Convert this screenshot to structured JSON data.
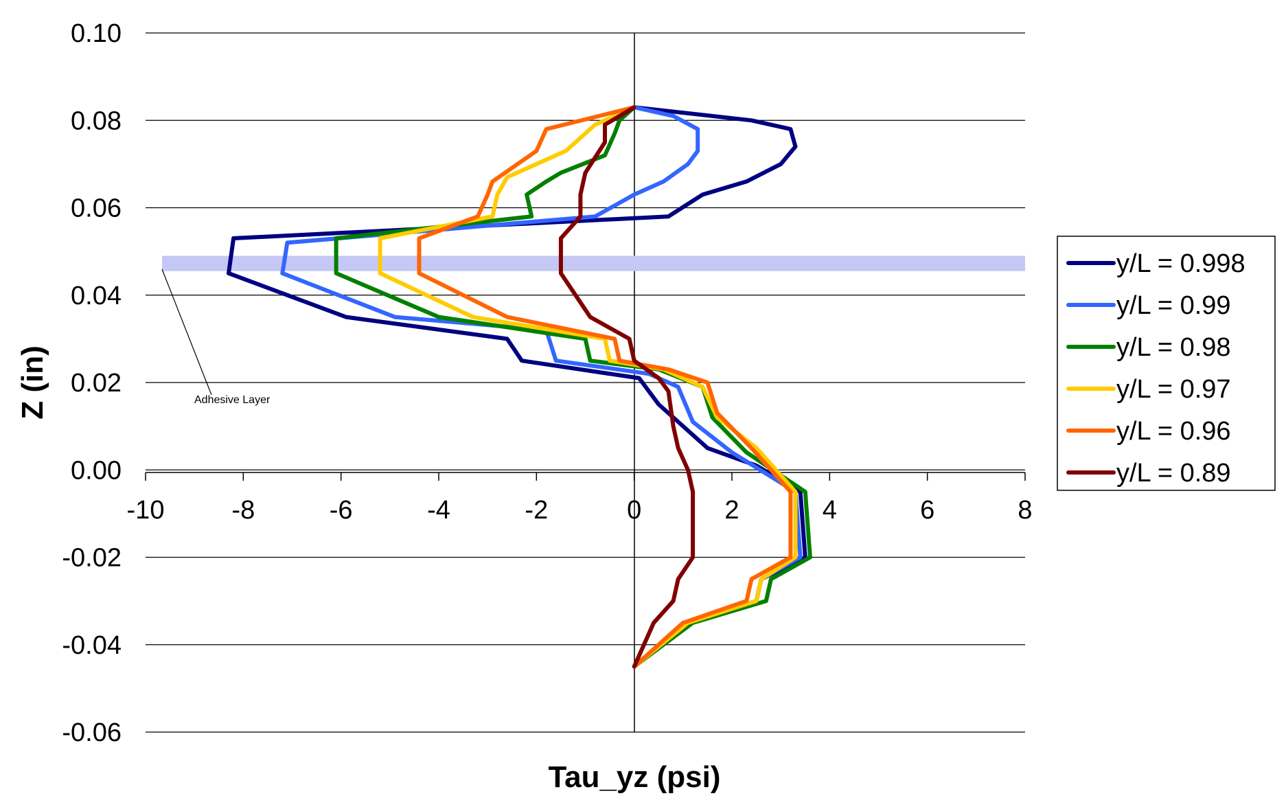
{
  "chart_data": {
    "type": "line",
    "title": "",
    "xlabel": "Tau_yz (psi)",
    "ylabel": "Z (in)",
    "xlim": [
      -10,
      8
    ],
    "ylim": [
      -0.06,
      0.1
    ],
    "x_ticks": [
      -10,
      -8,
      -6,
      -4,
      -2,
      0,
      2,
      4,
      6,
      8
    ],
    "x_tick_labels": [
      "-10",
      "-8",
      "-6",
      "-4",
      "-2",
      "0",
      "2",
      "4",
      "6",
      "8"
    ],
    "y_ticks": [
      0.1,
      0.08,
      0.06,
      0.04,
      0.02,
      0.0,
      -0.02,
      -0.04,
      -0.06
    ],
    "y_tick_labels": [
      "0.10",
      "0.08",
      "0.06",
      "0.04",
      "0.02",
      "0.00",
      "-0.02",
      "-0.04",
      "-0.06"
    ],
    "grid": "horizontal",
    "legend_position": "right",
    "annotation": {
      "text": "Adhesive Layer",
      "band_z_range": [
        0.0455,
        0.049
      ],
      "band_color": "#c5c8f5"
    },
    "series": [
      {
        "name": "y/L = 0.998",
        "color": "#000080",
        "points": [
          [
            0,
            0.083
          ],
          [
            2.4,
            0.08
          ],
          [
            3.2,
            0.078
          ],
          [
            3.3,
            0.074
          ],
          [
            3.0,
            0.07
          ],
          [
            2.3,
            0.066
          ],
          [
            1.4,
            0.063
          ],
          [
            0.7,
            0.058
          ],
          [
            -8.2,
            0.053
          ],
          [
            -8.3,
            0.045
          ],
          [
            -5.9,
            0.035
          ],
          [
            -2.6,
            0.03
          ],
          [
            -2.3,
            0.025
          ],
          [
            0.1,
            0.021
          ],
          [
            0.5,
            0.015
          ],
          [
            1.5,
            0.005
          ],
          [
            2.5,
            0.001
          ],
          [
            3.4,
            -0.005
          ],
          [
            3.5,
            -0.02
          ],
          [
            2.6,
            -0.025
          ],
          [
            2.5,
            -0.03
          ],
          [
            1.1,
            -0.035
          ],
          [
            0,
            -0.045
          ]
        ]
      },
      {
        "name": "y/L = 0.99",
        "color": "#3366ff",
        "points": [
          [
            0,
            0.083
          ],
          [
            0.8,
            0.081
          ],
          [
            1.3,
            0.078
          ],
          [
            1.3,
            0.073
          ],
          [
            1.1,
            0.07
          ],
          [
            0.6,
            0.066
          ],
          [
            0.0,
            0.063
          ],
          [
            -0.8,
            0.058
          ],
          [
            -7.1,
            0.052
          ],
          [
            -7.2,
            0.045
          ],
          [
            -4.9,
            0.035
          ],
          [
            -1.8,
            0.032
          ],
          [
            -1.6,
            0.025
          ],
          [
            0.3,
            0.022
          ],
          [
            0.9,
            0.019
          ],
          [
            1.2,
            0.011
          ],
          [
            2.0,
            0.004
          ],
          [
            3.3,
            -0.005
          ],
          [
            3.4,
            -0.02
          ],
          [
            2.6,
            -0.025
          ],
          [
            2.5,
            -0.03
          ],
          [
            1.1,
            -0.035
          ],
          [
            0,
            -0.045
          ]
        ]
      },
      {
        "name": "y/L = 0.98",
        "color": "#008000",
        "points": [
          [
            0,
            0.083
          ],
          [
            -0.3,
            0.08
          ],
          [
            -0.4,
            0.077
          ],
          [
            -0.6,
            0.072
          ],
          [
            -1.5,
            0.068
          ],
          [
            -1.8,
            0.066
          ],
          [
            -2.2,
            0.063
          ],
          [
            -2.1,
            0.058
          ],
          [
            -6.1,
            0.053
          ],
          [
            -6.1,
            0.045
          ],
          [
            -4.0,
            0.035
          ],
          [
            -1.0,
            0.03
          ],
          [
            -0.9,
            0.025
          ],
          [
            0.5,
            0.023
          ],
          [
            1.4,
            0.019
          ],
          [
            1.6,
            0.012
          ],
          [
            2.3,
            0.004
          ],
          [
            3.5,
            -0.005
          ],
          [
            3.6,
            -0.02
          ],
          [
            2.8,
            -0.025
          ],
          [
            2.7,
            -0.03
          ],
          [
            1.2,
            -0.035
          ],
          [
            0,
            -0.045
          ]
        ]
      },
      {
        "name": "y/L = 0.97",
        "color": "#ffcc00",
        "points": [
          [
            0,
            0.083
          ],
          [
            -0.8,
            0.079
          ],
          [
            -1.4,
            0.073
          ],
          [
            -2.6,
            0.067
          ],
          [
            -2.8,
            0.063
          ],
          [
            -2.9,
            0.058
          ],
          [
            -5.2,
            0.053
          ],
          [
            -5.2,
            0.045
          ],
          [
            -3.3,
            0.035
          ],
          [
            -0.6,
            0.03
          ],
          [
            -0.5,
            0.025
          ],
          [
            0.6,
            0.023
          ],
          [
            1.4,
            0.019
          ],
          [
            1.7,
            0.012
          ],
          [
            2.5,
            0.005
          ],
          [
            3.3,
            -0.005
          ],
          [
            3.3,
            -0.02
          ],
          [
            2.6,
            -0.025
          ],
          [
            2.5,
            -0.03
          ],
          [
            1.1,
            -0.035
          ],
          [
            0,
            -0.045
          ]
        ]
      },
      {
        "name": "y/L = 0.96",
        "color": "#ff6600",
        "points": [
          [
            0,
            0.083
          ],
          [
            -1.8,
            0.078
          ],
          [
            -2.0,
            0.073
          ],
          [
            -2.9,
            0.066
          ],
          [
            -3.0,
            0.063
          ],
          [
            -3.2,
            0.058
          ],
          [
            -4.4,
            0.053
          ],
          [
            -4.4,
            0.045
          ],
          [
            -2.6,
            0.035
          ],
          [
            -0.4,
            0.03
          ],
          [
            -0.3,
            0.025
          ],
          [
            0.7,
            0.023
          ],
          [
            1.5,
            0.02
          ],
          [
            1.7,
            0.013
          ],
          [
            2.4,
            0.005
          ],
          [
            3.2,
            -0.005
          ],
          [
            3.2,
            -0.02
          ],
          [
            2.4,
            -0.025
          ],
          [
            2.3,
            -0.03
          ],
          [
            1.0,
            -0.035
          ],
          [
            0,
            -0.045
          ]
        ]
      },
      {
        "name": "y/L = 0.89",
        "color": "#800000",
        "points": [
          [
            0,
            0.083
          ],
          [
            -0.6,
            0.079
          ],
          [
            -0.6,
            0.075
          ],
          [
            -1.0,
            0.068
          ],
          [
            -1.1,
            0.063
          ],
          [
            -1.1,
            0.058
          ],
          [
            -1.5,
            0.053
          ],
          [
            -1.5,
            0.045
          ],
          [
            -0.9,
            0.035
          ],
          [
            -0.1,
            0.03
          ],
          [
            0.0,
            0.025
          ],
          [
            0.5,
            0.021
          ],
          [
            0.7,
            0.018
          ],
          [
            0.8,
            0.01
          ],
          [
            0.9,
            0.005
          ],
          [
            1.1,
            0.0
          ],
          [
            1.2,
            -0.005
          ],
          [
            1.2,
            -0.02
          ],
          [
            0.9,
            -0.025
          ],
          [
            0.8,
            -0.03
          ],
          [
            0.4,
            -0.035
          ],
          [
            0,
            -0.045
          ]
        ]
      }
    ]
  }
}
